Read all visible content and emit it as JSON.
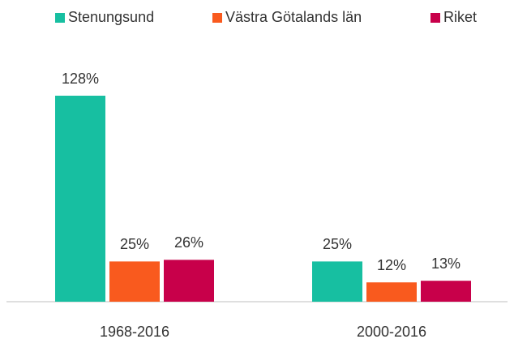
{
  "chart_data": {
    "type": "bar",
    "categories": [
      "1968-2016",
      "2000-2016"
    ],
    "series": [
      {
        "name": "Stenungsund",
        "color": "#17bfa1",
        "values": [
          128,
          25
        ],
        "value_labels": [
          "128%",
          "25%"
        ]
      },
      {
        "name": "Västra Götalands län",
        "color": "#f95a1e",
        "values": [
          25,
          12
        ],
        "value_labels": [
          "25%",
          "12%"
        ]
      },
      {
        "name": "Riket",
        "color": "#c8004a",
        "values": [
          26,
          13
        ],
        "value_labels": [
          "26%",
          "13%"
        ]
      }
    ],
    "legend": "top"
  }
}
